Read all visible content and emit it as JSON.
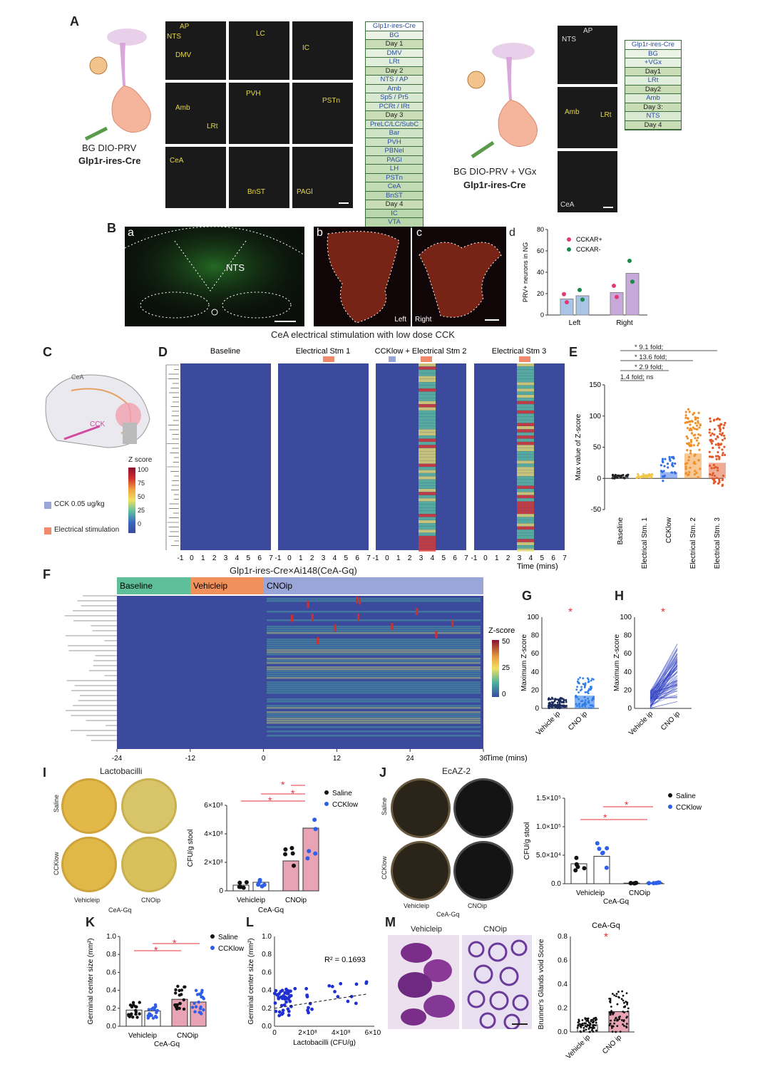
{
  "panels": {
    "A": "A",
    "B": "B",
    "C": "C",
    "D": "D",
    "E": "E",
    "F": "F",
    "G": "G",
    "H": "H",
    "I": "I",
    "J": "J",
    "K": "K",
    "L": "L",
    "M": "M"
  },
  "panelA": {
    "left_caption1": "BG DIO-PRV",
    "left_caption2": "Glp1r-ires-Cre",
    "right_caption1": "BG DIO-PRV + VGx",
    "right_caption2": "Glp1r-ires-Cre",
    "micro_labels": [
      "AP",
      "NTS",
      "DMV",
      "LC",
      "IC",
      "Amb",
      "LRt",
      "PVH",
      "PSTn",
      "CeA",
      "BnST",
      "PAGl"
    ],
    "right_micro_labels": [
      "NTS",
      "AP",
      "Amb",
      "LRt",
      "CeA"
    ],
    "table_left": [
      "Glp1r-ires-Cre",
      "BG",
      "Day 1",
      "DMV",
      "LRt",
      "Day 2",
      "NTS / AP",
      "Amb",
      "Sp5 / Pr5",
      "PCRt / IRt",
      "Day 3",
      "PreLC/LC/SubC",
      "Bar",
      "PVH",
      "PBNel",
      "PAGl",
      "LH",
      "PSTn",
      "CeA",
      "BnST",
      "Day 4",
      "IC",
      "VTA"
    ],
    "table_right": [
      "Glp1r-ires-Cre",
      "BG",
      "+VGx",
      "Day1",
      "LRt",
      "Day2",
      "Amb",
      "Day 3:",
      "NTS",
      "Day 4"
    ]
  },
  "panelB": {
    "sub_a": "a",
    "sub_b": "b",
    "sub_c": "c",
    "sub_d": "d",
    "nts": "NTS",
    "left": "Left",
    "right": "Right"
  },
  "panelBd": {
    "chart_data": {
      "type": "bar",
      "categories": [
        "Left",
        "Right"
      ],
      "series": [
        {
          "name": "CCKAR+",
          "values": [
            15,
            21
          ]
        },
        {
          "name": "CCKAR-",
          "values": [
            18,
            39
          ]
        }
      ],
      "ylabel": "PRV+ neurons in NG",
      "ylim": [
        0,
        80
      ],
      "yticks": [
        "0",
        "20",
        "40",
        "60",
        "80"
      ]
    }
  },
  "panelD": {
    "title": "CeA electrical stimulation with low dose CCK",
    "blocks": [
      "Baseline",
      "Electrical Stm 1",
      "CCKlow + Electrical Stm 2",
      "Electrical Stm 3"
    ],
    "xticks": [
      "-1",
      "0",
      "1",
      "2",
      "3",
      "4",
      "5",
      "6",
      "7"
    ],
    "xlabel": "Time (mins)",
    "legend_title": "Z score",
    "legend_ticks": [
      "100",
      "75",
      "50",
      "25",
      "0"
    ],
    "cck_label": "CCK 0.05 ug/kg",
    "stim_label": "Electrical stimulation"
  },
  "panelE": {
    "chart_data": {
      "type": "scatter",
      "categories": [
        "Baseline",
        "Electrical Stm. 1",
        "CCKlow",
        "Electrical Stm. 2",
        "Electrical Stm. 3"
      ],
      "means": [
        2,
        3,
        10,
        40,
        25
      ],
      "ylabel": "Max value of Z-score",
      "ylim": [
        -50,
        150
      ],
      "yticks": [
        "150",
        "100",
        "50",
        "0",
        "-50"
      ],
      "comparisons": [
        "9.1 fold;",
        "13.6 fold;",
        "2.9 fold;",
        "1.4 fold;  ns"
      ]
    }
  },
  "panelF": {
    "title": "Glp1r-ires-Cre×Ai148(CeA-Gq)",
    "phases": [
      "Baseline",
      "Vehicle",
      "CNO"
    ],
    "phase_sup": "ip",
    "xticks": [
      "-24",
      "-12",
      "0",
      "12",
      "24",
      "36"
    ],
    "xlabel": "Time (mins)",
    "legend_title": "Z-score",
    "legend_ticks": [
      "50",
      "25",
      "0"
    ]
  },
  "panelG": {
    "chart_data": {
      "type": "scatter",
      "categories": [
        "Vehicle ip",
        "CNO ip"
      ],
      "means": [
        4,
        14
      ],
      "ylabel": "Maximum Z-score",
      "ylim": [
        0,
        100
      ],
      "yticks": [
        "100",
        "80",
        "60",
        "40",
        "20",
        "0"
      ]
    }
  },
  "panelH": {
    "chart_data": {
      "type": "line",
      "categories": [
        "Vehicle ip",
        "CNO ip"
      ],
      "ylabel": "Maximum Z-score",
      "ylim": [
        0,
        100
      ],
      "yticks": [
        "100",
        "80",
        "60",
        "40",
        "20",
        "0"
      ]
    }
  },
  "panelI": {
    "title": "Lactobacilli",
    "row_labels": [
      "Saline",
      "CCKlow"
    ],
    "col_labels": [
      "Vehicleip",
      "CNOip"
    ],
    "group": "CeA-Gq",
    "chart_data": {
      "type": "bar",
      "categories": [
        "Vehicle ip Saline",
        "Vehicle ip CCKlow",
        "CNO ip Saline",
        "CNO ip CCKlow"
      ],
      "values": [
        40000000,
        60000000,
        210000000,
        440000000
      ],
      "ylabel": "CFU/g stool",
      "ylim": [
        0,
        600000000
      ],
      "yticks": [
        "6×10⁸",
        "4×10⁸",
        "2×10⁸",
        "0"
      ],
      "legend": [
        "Saline",
        "CCKlow"
      ]
    }
  },
  "panelJ": {
    "title": "EcAZ-2",
    "row_labels": [
      "Saline",
      "CCKlow"
    ],
    "col_labels": [
      "Vehicleip",
      "CNOip"
    ],
    "group": "CeA-Gq",
    "chart_data": {
      "type": "bar",
      "categories": [
        "Vehicle ip Saline",
        "Vehicle ip CCKlow",
        "CNO ip Saline",
        "CNO ip CCKlow"
      ],
      "values": [
        35000,
        48000,
        1000,
        1500
      ],
      "ylabel": "CFU/g stool",
      "ylim": [
        0,
        150000
      ],
      "yticks": [
        "1.5×10⁵",
        "1.0×10⁵",
        "5.0×10⁴",
        "0.0"
      ],
      "legend": [
        "Saline",
        "CCKlow"
      ]
    }
  },
  "panelK": {
    "chart_data": {
      "type": "bar",
      "categories": [
        "Vehicle ip Saline",
        "Vehicle ip CCKlow",
        "CNO ip Saline",
        "CNO ip CCKlow"
      ],
      "values": [
        0.18,
        0.17,
        0.3,
        0.27
      ],
      "ylabel": "Germinal center size (mm²)",
      "ylim": [
        0,
        1.0
      ],
      "yticks": [
        "1.0",
        "0.8",
        "0.6",
        "0.4",
        "0.2",
        "0.0"
      ],
      "legend": [
        "Saline",
        "CCKlow"
      ]
    },
    "xlabels": [
      "Vehicleip",
      "CNOip"
    ],
    "group": "CeA-Gq"
  },
  "panelL": {
    "chart_data": {
      "type": "scatter",
      "xlabel": "Lactobacilli (CFU/g)",
      "ylabel": "Germinal center size (mm²)",
      "xlim": [
        0,
        600000000
      ],
      "ylim": [
        0,
        1.0
      ],
      "xticks": [
        "0",
        "2×10⁸",
        "4×10⁸",
        "6×10⁸"
      ],
      "yticks": [
        "1.0",
        "0.8",
        "0.6",
        "0.4",
        "0.2",
        "0.0"
      ],
      "annotation": "R² = 0.1693"
    }
  },
  "panelM": {
    "left": "Vehicleip",
    "right": "CNOip",
    "chart_title": "CeA-Gq",
    "chart_data": {
      "type": "bar",
      "categories": [
        "Vehicle ip",
        "CNO ip"
      ],
      "values": [
        0.06,
        0.17
      ],
      "ylabel": "Brunner's Glands void Score",
      "ylim": [
        0,
        0.8
      ],
      "yticks": [
        "0.8",
        "0.6",
        "0.4",
        "0.2",
        "0.0"
      ]
    }
  },
  "colors": {
    "saline": "#111111",
    "ccklow": "#2f5ee8",
    "star": "#e8333a",
    "bar_pink": "#e8a4b4",
    "heat_bg": "#3b4a9c"
  }
}
